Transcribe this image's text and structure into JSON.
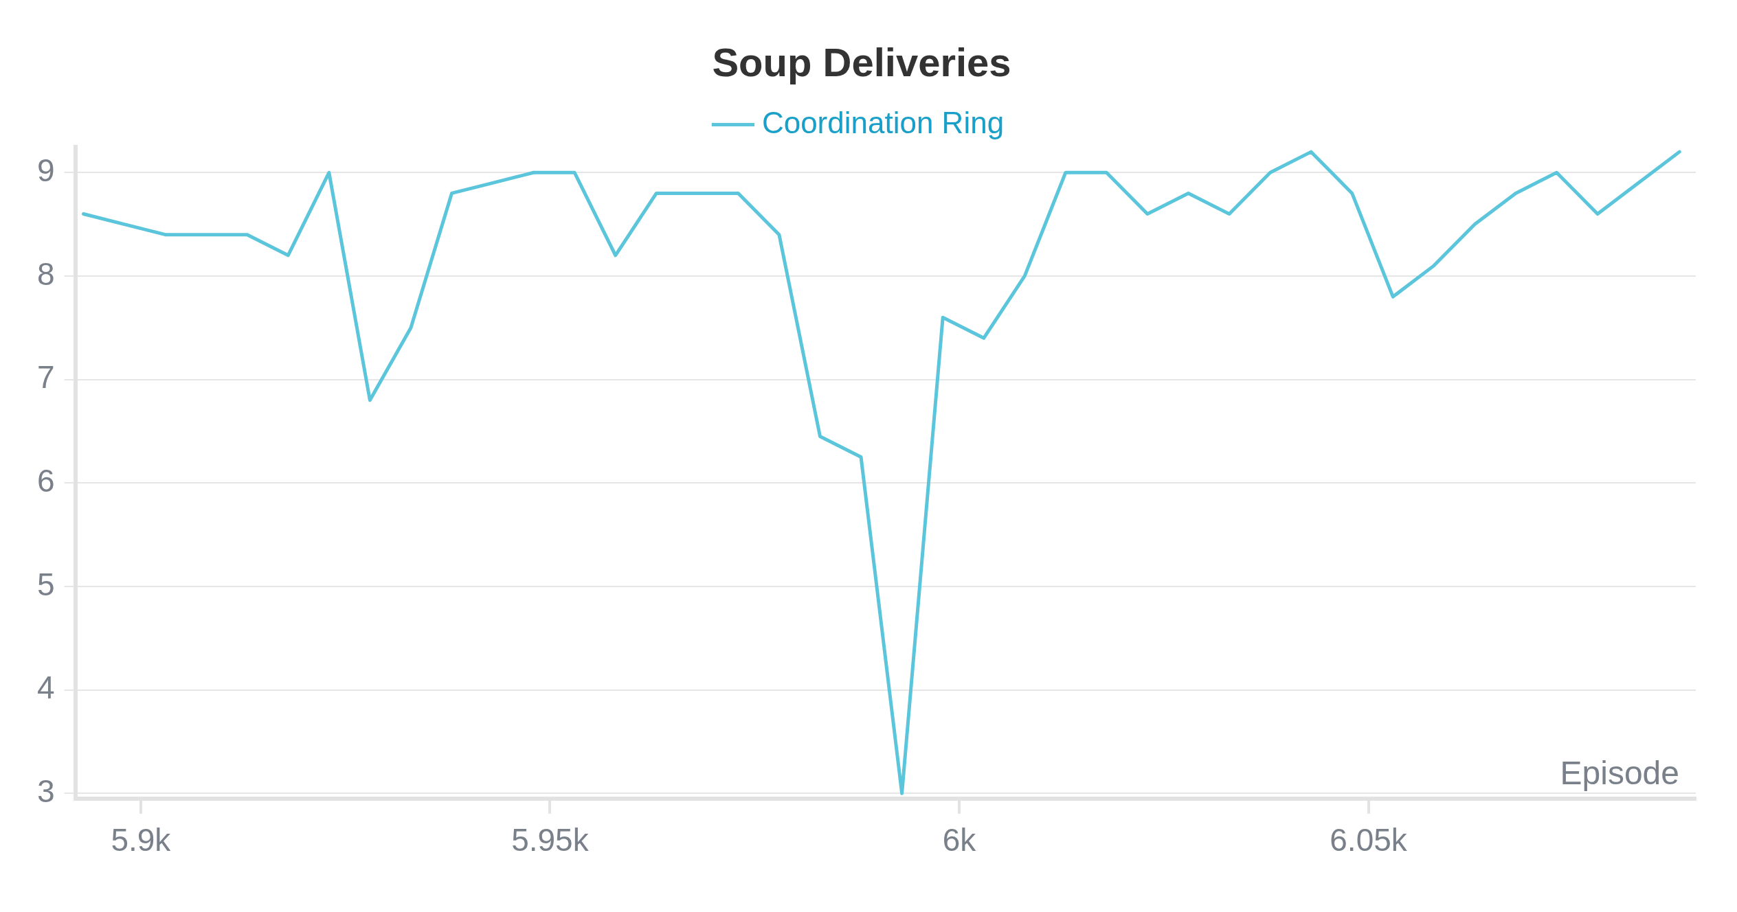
{
  "chart_data": {
    "type": "line",
    "title": "Soup Deliveries",
    "xlabel": "Episode",
    "legend": "top",
    "grid": "y",
    "marker": "none",
    "line_style": "solid",
    "x": [
      5893,
      5898,
      5903,
      5908,
      5913,
      5918,
      5923,
      5928,
      5933,
      5938,
      5943,
      5948,
      5953,
      5958,
      5963,
      5968,
      5973,
      5978,
      5983,
      5988,
      5993,
      5998,
      6003,
      6008,
      6013,
      6018,
      6023,
      6028,
      6033,
      6038,
      6043,
      6048,
      6053,
      6058,
      6063,
      6068,
      6073,
      6078,
      6083,
      6088
    ],
    "series": [
      {
        "name": "Coordination Ring",
        "color": "#5bc5db",
        "values": [
          8.6,
          8.5,
          8.4,
          8.4,
          8.4,
          8.2,
          9,
          6.8,
          7.5,
          8.8,
          8.9,
          9,
          9,
          8.2,
          8.8,
          8.8,
          8.8,
          8.4,
          6.45,
          6.25,
          3,
          7.6,
          7.4,
          8,
          9,
          9,
          8.6,
          8.8,
          8.6,
          9,
          9.2,
          8.8,
          7.8,
          8.1,
          8.5,
          8.8,
          9,
          8.6,
          8.9,
          9.2
        ]
      }
    ],
    "xlim": [
      5892,
      6090
    ],
    "xticks": [
      {
        "value": 5900,
        "label": "5.9k"
      },
      {
        "value": 5950,
        "label": "5.95k"
      },
      {
        "value": 6000,
        "label": "6k"
      },
      {
        "value": 6050,
        "label": "6.05k"
      }
    ],
    "ylim": [
      2.95,
      9.25
    ],
    "yticks": [
      3,
      4,
      5,
      6,
      7,
      8,
      9
    ]
  }
}
